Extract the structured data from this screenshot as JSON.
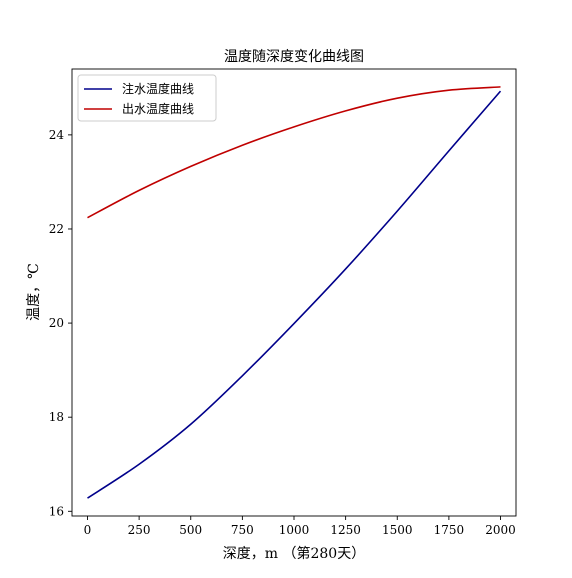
{
  "chart_data": {
    "type": "line",
    "title": "温度随深度变化曲线图",
    "xlabel": "深度，m （第280天）",
    "ylabel": "温度，℃",
    "xlim": [
      -75,
      2075
    ],
    "ylim": [
      15.9,
      25.4
    ],
    "xticks": [
      0,
      250,
      500,
      750,
      1000,
      1250,
      1500,
      1750,
      2000
    ],
    "xtick_labels": [
      "0",
      "250",
      "500",
      "750",
      "1000",
      "1250",
      "1500",
      "1750",
      "2000"
    ],
    "yticks": [
      16,
      18,
      20,
      22,
      24
    ],
    "ytick_labels": [
      "16",
      "18",
      "20",
      "22",
      "24"
    ],
    "grid": false,
    "legend_position": "top-left",
    "series": [
      {
        "name": "注水温度曲线",
        "color": "#00008b",
        "x": [
          0,
          250,
          500,
          750,
          1000,
          1250,
          1500,
          1750,
          2000
        ],
        "y": [
          16.28,
          17.0,
          17.85,
          18.88,
          19.99,
          21.15,
          22.38,
          23.66,
          24.93
        ]
      },
      {
        "name": "出水温度曲线",
        "color": "#c00000",
        "x": [
          0,
          250,
          500,
          750,
          1000,
          1250,
          1500,
          1750,
          2000
        ],
        "y": [
          22.24,
          22.82,
          23.33,
          23.78,
          24.17,
          24.51,
          24.78,
          24.95,
          25.02
        ]
      }
    ]
  }
}
